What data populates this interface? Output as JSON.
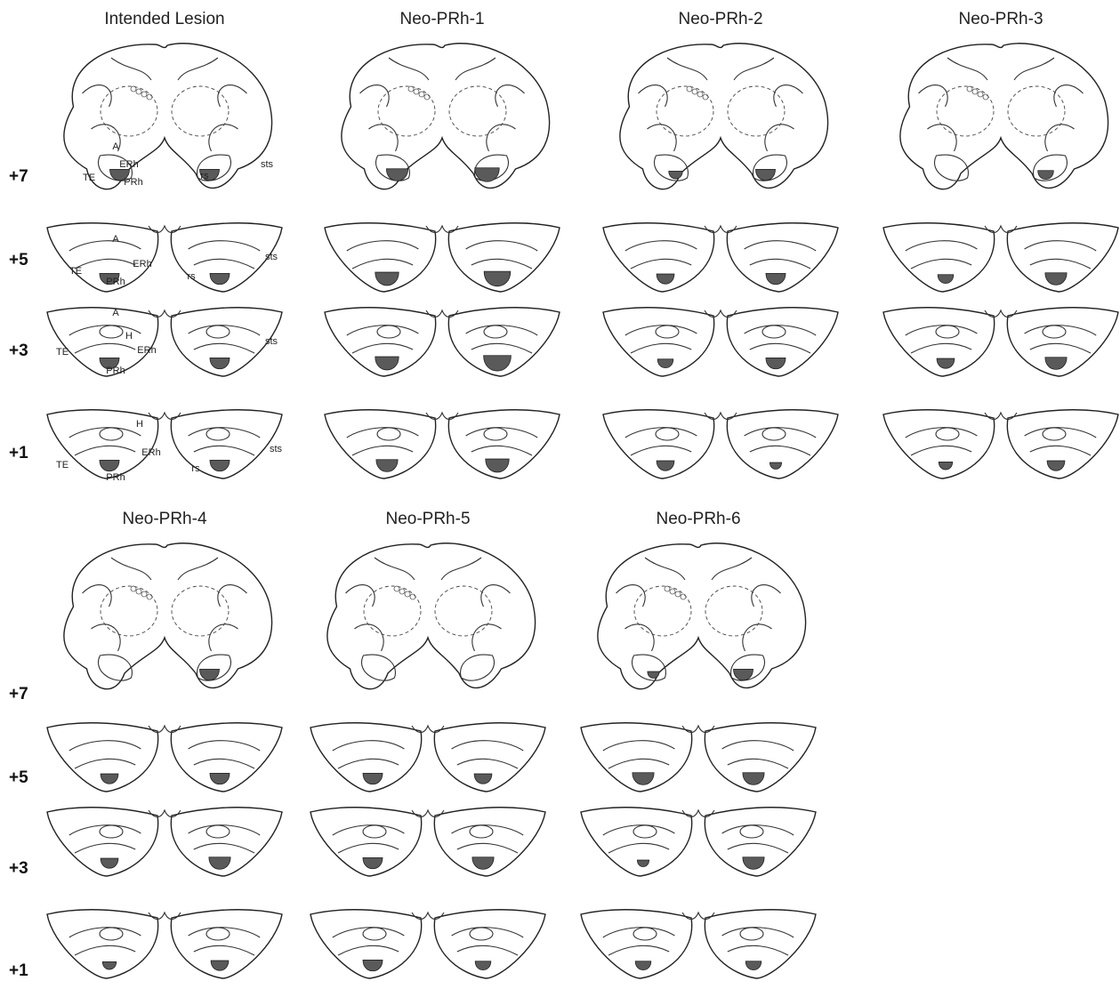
{
  "figure": {
    "panels": [
      {
        "title": "Intended Lesion",
        "annotated": true
      },
      {
        "title": "Neo-PRh-1",
        "annotated": false
      },
      {
        "title": "Neo-PRh-2",
        "annotated": false
      },
      {
        "title": "Neo-PRh-3",
        "annotated": false
      },
      {
        "title": "Neo-PRh-4",
        "annotated": false
      },
      {
        "title": "Neo-PRh-5",
        "annotated": false
      },
      {
        "title": "Neo-PRh-6",
        "annotated": false
      }
    ],
    "levels": [
      "+7",
      "+5",
      "+3",
      "+1"
    ],
    "labels": {
      "A": "A",
      "H": "H",
      "TE": "TE",
      "ERh": "ERh",
      "PRh": "PRh",
      "rs": "rs",
      "sts": "sts"
    },
    "colors": {
      "lesion": "#5a5a5a",
      "line": "#222222",
      "background": "#ffffff"
    }
  }
}
